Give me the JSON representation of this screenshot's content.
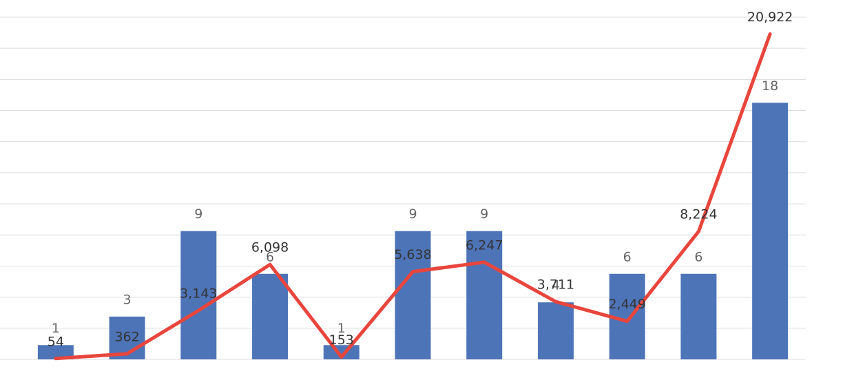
{
  "chart_data": {
    "type": "combo",
    "categories": [
      null,
      null,
      null,
      null,
      null,
      null,
      null,
      null,
      null,
      null,
      null
    ],
    "series": [
      {
        "type": "bar",
        "color": "#4e74b8",
        "values": [
          1,
          3,
          9,
          6,
          1,
          9,
          9,
          4,
          6,
          6,
          18
        ]
      },
      {
        "type": "line",
        "axis": "y2",
        "color": "#e8453c",
        "values": [
          54,
          362,
          3143,
          6098,
          153,
          5638,
          6247,
          3711,
          2449,
          8224,
          20922
        ],
        "value_labels": [
          "54",
          "362",
          "3,143",
          "6,098",
          "153",
          "5,638",
          "6,247",
          "3,711",
          "2,449",
          "8,224",
          "20,922"
        ]
      }
    ],
    "ylim": [
      0,
      24
    ],
    "y2lim": [
      0,
      22000
    ],
    "y2ticks": [
      0,
      2000,
      4000,
      6000,
      8000,
      10000,
      12000,
      14000,
      16000,
      18000,
      20000,
      22000
    ],
    "grid": true
  }
}
